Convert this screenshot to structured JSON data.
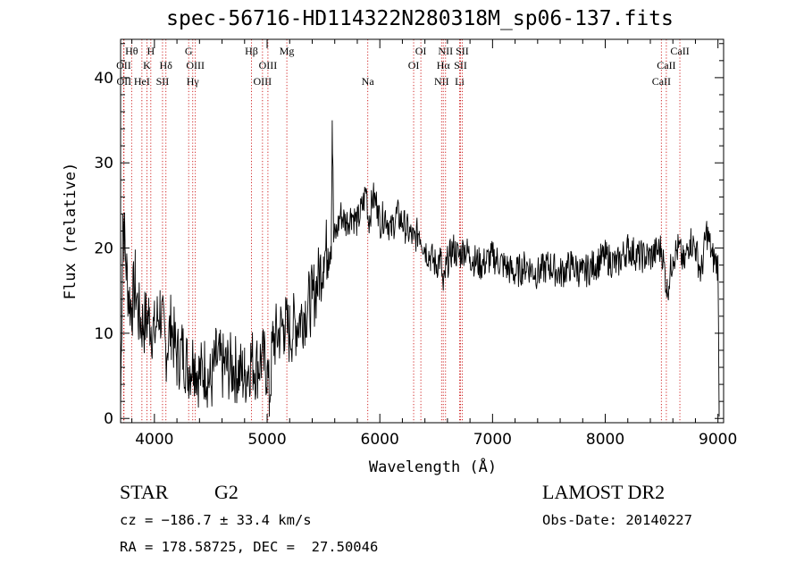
{
  "chart_data": {
    "type": "line",
    "title": "spec-56716-HD114322N280318M_sp06-137.fits",
    "xlabel": "Wavelength (Å)",
    "ylabel": "Flux (relative)",
    "xlim": [
      3700,
      9050
    ],
    "ylim": [
      -0.5,
      44.5
    ],
    "xticks": [
      4000,
      5000,
      6000,
      7000,
      8000,
      9000
    ],
    "yticks": [
      0,
      10,
      20,
      30,
      40
    ],
    "grid": false,
    "series": [
      {
        "x": [
          3700,
          3720,
          3740,
          3760,
          3780,
          3800,
          3830,
          3860,
          3900,
          3950,
          4000,
          4050,
          4100,
          4150,
          4200,
          4250,
          4300,
          4350,
          4400,
          4450,
          4500,
          4550,
          4600,
          4700,
          4800,
          4860,
          4900,
          4950,
          5000,
          5020,
          5050,
          5100,
          5150,
          5200,
          5300,
          5400,
          5450,
          5500,
          5540,
          5570,
          5578,
          5590,
          5620,
          5650,
          5700,
          5750,
          5800,
          5850,
          5880,
          5900,
          5940,
          5980,
          6000,
          6050,
          6100,
          6150,
          6200,
          6250,
          6300,
          6350,
          6400,
          6450,
          6500,
          6540,
          6563,
          6590,
          6620,
          6650,
          6700,
          6750,
          6800,
          6900,
          7000,
          7100,
          7200,
          7300,
          7400,
          7500,
          7600,
          7700,
          7800,
          7900,
          8000,
          8100,
          8200,
          8300,
          8400,
          8500,
          8550,
          8600,
          8650,
          8700,
          8750,
          8800,
          8850,
          8900,
          8950,
          9000,
          9010
        ],
        "values": [
          1,
          24,
          20,
          16,
          14,
          13,
          16,
          12,
          11,
          12,
          10,
          13,
          8,
          11,
          7,
          8,
          6,
          7,
          5,
          6,
          4,
          7,
          6,
          6,
          5,
          7,
          6,
          7,
          6,
          2,
          9,
          10,
          11,
          10,
          12,
          14,
          16,
          19,
          20,
          22,
          35,
          21,
          22,
          24,
          23,
          24,
          23,
          25,
          27,
          23,
          26,
          25,
          23,
          24,
          22,
          24,
          23,
          22,
          21,
          22,
          20,
          19,
          18,
          19,
          15,
          18,
          19,
          20,
          19,
          20,
          19,
          18,
          19,
          18,
          17,
          18,
          17,
          18,
          17,
          18,
          17,
          18,
          19,
          18,
          20,
          19,
          19,
          20,
          15,
          19,
          20,
          18,
          21,
          20,
          17,
          22,
          19,
          18,
          2
        ]
      }
    ],
    "line_marks": [
      {
        "wavelength": 3727,
        "labels": [
          "OII"
        ],
        "row": 2
      },
      {
        "wavelength": 3730,
        "labels": [
          "OII"
        ],
        "row": 3
      },
      {
        "wavelength": 3798,
        "labels": [
          "Hθ"
        ],
        "row": 1
      },
      {
        "wavelength": 3889,
        "labels": [
          "HeI"
        ],
        "row": 3
      },
      {
        "wavelength": 3934,
        "labels": [
          "K"
        ],
        "row": 2
      },
      {
        "wavelength": 3968,
        "labels": [
          "H"
        ],
        "row": 1
      },
      {
        "wavelength": 4072,
        "labels": [
          "SII"
        ],
        "row": 3
      },
      {
        "wavelength": 4102,
        "labels": [
          "Hδ"
        ],
        "row": 2
      },
      {
        "wavelength": 4304,
        "labels": [
          "G"
        ],
        "row": 1
      },
      {
        "wavelength": 4340,
        "labels": [
          "Hγ"
        ],
        "row": 3
      },
      {
        "wavelength": 4363,
        "labels": [
          "OIII"
        ],
        "row": 2
      },
      {
        "wavelength": 4861,
        "labels": [
          "Hβ"
        ],
        "row": 1
      },
      {
        "wavelength": 4959,
        "labels": [
          "OIII"
        ],
        "row": 3
      },
      {
        "wavelength": 5007,
        "labels": [
          "OIII"
        ],
        "row": 2
      },
      {
        "wavelength": 5175,
        "labels": [
          "Mg"
        ],
        "row": 1
      },
      {
        "wavelength": 5893,
        "labels": [
          "Na"
        ],
        "row": 3
      },
      {
        "wavelength": 6300,
        "labels": [
          "OI"
        ],
        "row": 2
      },
      {
        "wavelength": 6364,
        "labels": [
          "OI"
        ],
        "row": 1
      },
      {
        "wavelength": 6548,
        "labels": [
          "NII"
        ],
        "row": 3
      },
      {
        "wavelength": 6563,
        "labels": [
          "Hα"
        ],
        "row": 2
      },
      {
        "wavelength": 6583,
        "labels": [
          "NII"
        ],
        "row": 1
      },
      {
        "wavelength": 6708,
        "labels": [
          "Li"
        ],
        "row": 3
      },
      {
        "wavelength": 6716,
        "labels": [
          "SII"
        ],
        "row": 2
      },
      {
        "wavelength": 6731,
        "labels": [
          "SII"
        ],
        "row": 1
      },
      {
        "wavelength": 8498,
        "labels": [
          "CaII"
        ],
        "row": 3
      },
      {
        "wavelength": 8542,
        "labels": [
          "CaII"
        ],
        "row": 2
      },
      {
        "wavelength": 8662,
        "labels": [
          "CaII"
        ],
        "row": 1
      }
    ]
  },
  "footer": {
    "object_type": "STAR",
    "subclass": "G2",
    "survey": "LAMOST DR2",
    "redshift": "cz = −186.7 ± 33.4 km/s",
    "obs_date": "Obs-Date: 20140227",
    "coords": "RA = 178.58725, DEC =  27.50046"
  }
}
